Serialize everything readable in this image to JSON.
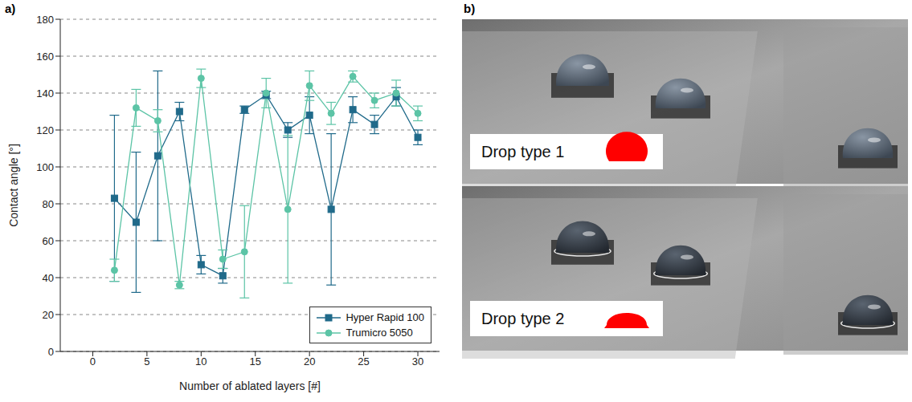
{
  "chart_data": {
    "type": "line",
    "panel_label": "a)",
    "x_label": "Number of ablated layers [#]",
    "y_label": "Contact angle [°]",
    "x": [
      2,
      4,
      6,
      8,
      10,
      12,
      14,
      16,
      18,
      20,
      22,
      24,
      26,
      28,
      30
    ],
    "series": [
      {
        "name": "Hyper Rapid 100",
        "color": "#206a8a",
        "marker": "square",
        "values": [
          83,
          70,
          106,
          130,
          47,
          41,
          131,
          139,
          120,
          128,
          77,
          131,
          123,
          138,
          116
        ],
        "errors": [
          45,
          38,
          46,
          5,
          5,
          4,
          2,
          2,
          4,
          10,
          41,
          7,
          5,
          5,
          4
        ]
      },
      {
        "name": "Trumicro 5050",
        "color": "#5cc4a6",
        "marker": "circle",
        "values": [
          44,
          132,
          125,
          36,
          148,
          50,
          54,
          140,
          77,
          144,
          129,
          149,
          136,
          140,
          129
        ],
        "errors": [
          6,
          10,
          6,
          2,
          5,
          5,
          25,
          8,
          40,
          8,
          6,
          3,
          4,
          7,
          4
        ]
      }
    ],
    "xlim": [
      -3,
      32
    ],
    "xticks": [
      0,
      5,
      10,
      15,
      20,
      25,
      30
    ],
    "ylim": [
      0,
      180
    ],
    "yticks": [
      0,
      20,
      40,
      60,
      80,
      100,
      120,
      140,
      160,
      180
    ],
    "grid": true,
    "legend": "lower right"
  },
  "image": {
    "panel_label": "b)",
    "captions": [
      "Drop type 1",
      "Drop type 2"
    ]
  }
}
